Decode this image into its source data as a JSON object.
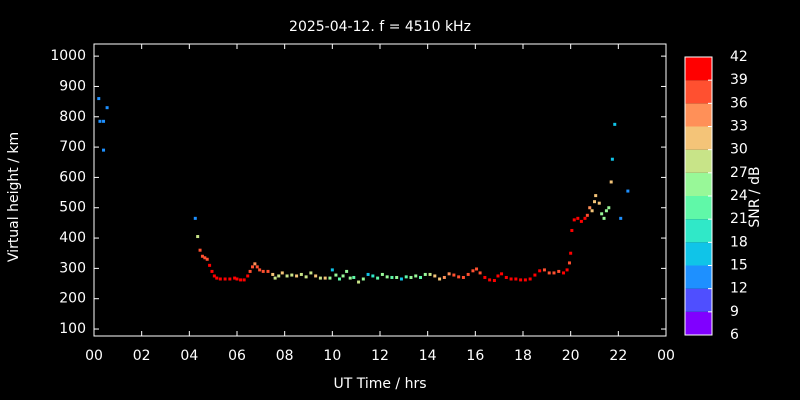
{
  "chart_data": {
    "type": "scatter",
    "title": "2025-04-12. f = 4510 kHz",
    "x_label": "UT Time / hrs",
    "y_label": "Virtual height / km",
    "x": [
      0.2,
      0.25,
      0.4,
      0.4,
      0.55,
      4.25,
      4.35,
      4.45,
      4.55,
      4.65,
      4.75,
      4.85,
      4.95,
      5.05,
      5.15,
      5.3,
      5.5,
      5.7,
      5.9,
      6.0,
      6.15,
      6.3,
      6.45,
      6.55,
      6.65,
      6.75,
      6.85,
      6.95,
      7.1,
      7.3,
      7.5,
      7.6,
      7.75,
      7.9,
      8.1,
      8.3,
      8.5,
      8.7,
      8.9,
      9.1,
      9.3,
      9.5,
      9.7,
      9.9,
      10.0,
      10.15,
      10.3,
      10.45,
      10.6,
      10.75,
      10.9,
      11.1,
      11.3,
      11.5,
      11.7,
      11.9,
      12.1,
      12.3,
      12.5,
      12.7,
      12.9,
      13.1,
      13.3,
      13.5,
      13.7,
      13.9,
      14.1,
      14.3,
      14.5,
      14.7,
      14.9,
      15.1,
      15.3,
      15.5,
      15.7,
      15.9,
      16.05,
      16.2,
      16.4,
      16.6,
      16.8,
      16.95,
      17.1,
      17.3,
      17.5,
      17.7,
      17.9,
      18.1,
      18.3,
      18.5,
      18.7,
      18.9,
      19.1,
      19.3,
      19.5,
      19.7,
      19.85,
      19.95,
      20.0,
      20.05,
      20.15,
      20.3,
      20.45,
      20.6,
      20.7,
      20.8,
      20.9,
      21.0,
      21.05,
      21.2,
      21.3,
      21.4,
      21.5,
      21.6,
      21.7,
      21.75,
      21.85,
      22.1,
      22.4
    ],
    "values": [
      860,
      785,
      785,
      690,
      830,
      465,
      405,
      360,
      340,
      335,
      330,
      310,
      290,
      275,
      268,
      265,
      265,
      265,
      268,
      265,
      262,
      262,
      275,
      290,
      305,
      315,
      305,
      295,
      290,
      290,
      280,
      268,
      275,
      285,
      275,
      278,
      275,
      280,
      272,
      285,
      275,
      268,
      268,
      268,
      295,
      278,
      265,
      275,
      290,
      268,
      270,
      255,
      265,
      280,
      275,
      268,
      280,
      272,
      270,
      270,
      265,
      272,
      270,
      275,
      270,
      280,
      280,
      275,
      265,
      270,
      282,
      278,
      272,
      270,
      280,
      292,
      298,
      285,
      270,
      262,
      260,
      275,
      282,
      270,
      265,
      265,
      262,
      262,
      265,
      278,
      292,
      295,
      285,
      285,
      290,
      285,
      295,
      318,
      350,
      425,
      460,
      465,
      455,
      465,
      475,
      500,
      490,
      520,
      540,
      515,
      480,
      465,
      490,
      500,
      585,
      660,
      775,
      465,
      555
    ],
    "snr": [
      12,
      12,
      12,
      12,
      12,
      14,
      27,
      38,
      38,
      38,
      38,
      39,
      40,
      40,
      40,
      40,
      40,
      40,
      40,
      40,
      40,
      40,
      40,
      38,
      36,
      34,
      36,
      38,
      38,
      38,
      30,
      27,
      27,
      30,
      27,
      27,
      30,
      27,
      27,
      27,
      30,
      27,
      30,
      24,
      15,
      24,
      21,
      24,
      24,
      24,
      21,
      27,
      24,
      15,
      18,
      21,
      24,
      24,
      21,
      24,
      15,
      21,
      24,
      24,
      21,
      24,
      27,
      30,
      30,
      33,
      34,
      36,
      38,
      38,
      38,
      38,
      38,
      38,
      40,
      40,
      40,
      40,
      40,
      40,
      40,
      40,
      40,
      40,
      40,
      40,
      40,
      38,
      36,
      36,
      38,
      40,
      40,
      38,
      40,
      40,
      40,
      40,
      40,
      39,
      36,
      33,
      32,
      32,
      30,
      31,
      24,
      24,
      24,
      24,
      30,
      17,
      15,
      12,
      12
    ],
    "xlim": [
      0,
      24
    ],
    "xticks": [
      {
        "value": 0,
        "label": "00"
      },
      {
        "value": 2,
        "label": "02"
      },
      {
        "value": 4,
        "label": "04"
      },
      {
        "value": 6,
        "label": "06"
      },
      {
        "value": 8,
        "label": "08"
      },
      10,
      12,
      14,
      16,
      18,
      20,
      22,
      {
        "value": 24,
        "label": "00"
      }
    ],
    "ylim": [
      77,
      1040
    ],
    "yticks": [
      100,
      200,
      300,
      400,
      500,
      600,
      700,
      800,
      900,
      1000
    ],
    "colorbar": {
      "label": "SNR / dB",
      "lim": [
        6,
        42
      ],
      "ticks": [
        6,
        9,
        12,
        15,
        18,
        21,
        24,
        27,
        30,
        33,
        36,
        39,
        42
      ],
      "colors": [
        "#8000ff",
        "#4f4fff",
        "#1e90ff",
        "#10c4e8",
        "#30e8c8",
        "#60f8a8",
        "#98f898",
        "#c8e488",
        "#f4c478",
        "#ff9058",
        "#ff5030",
        "#ff0000"
      ]
    }
  }
}
